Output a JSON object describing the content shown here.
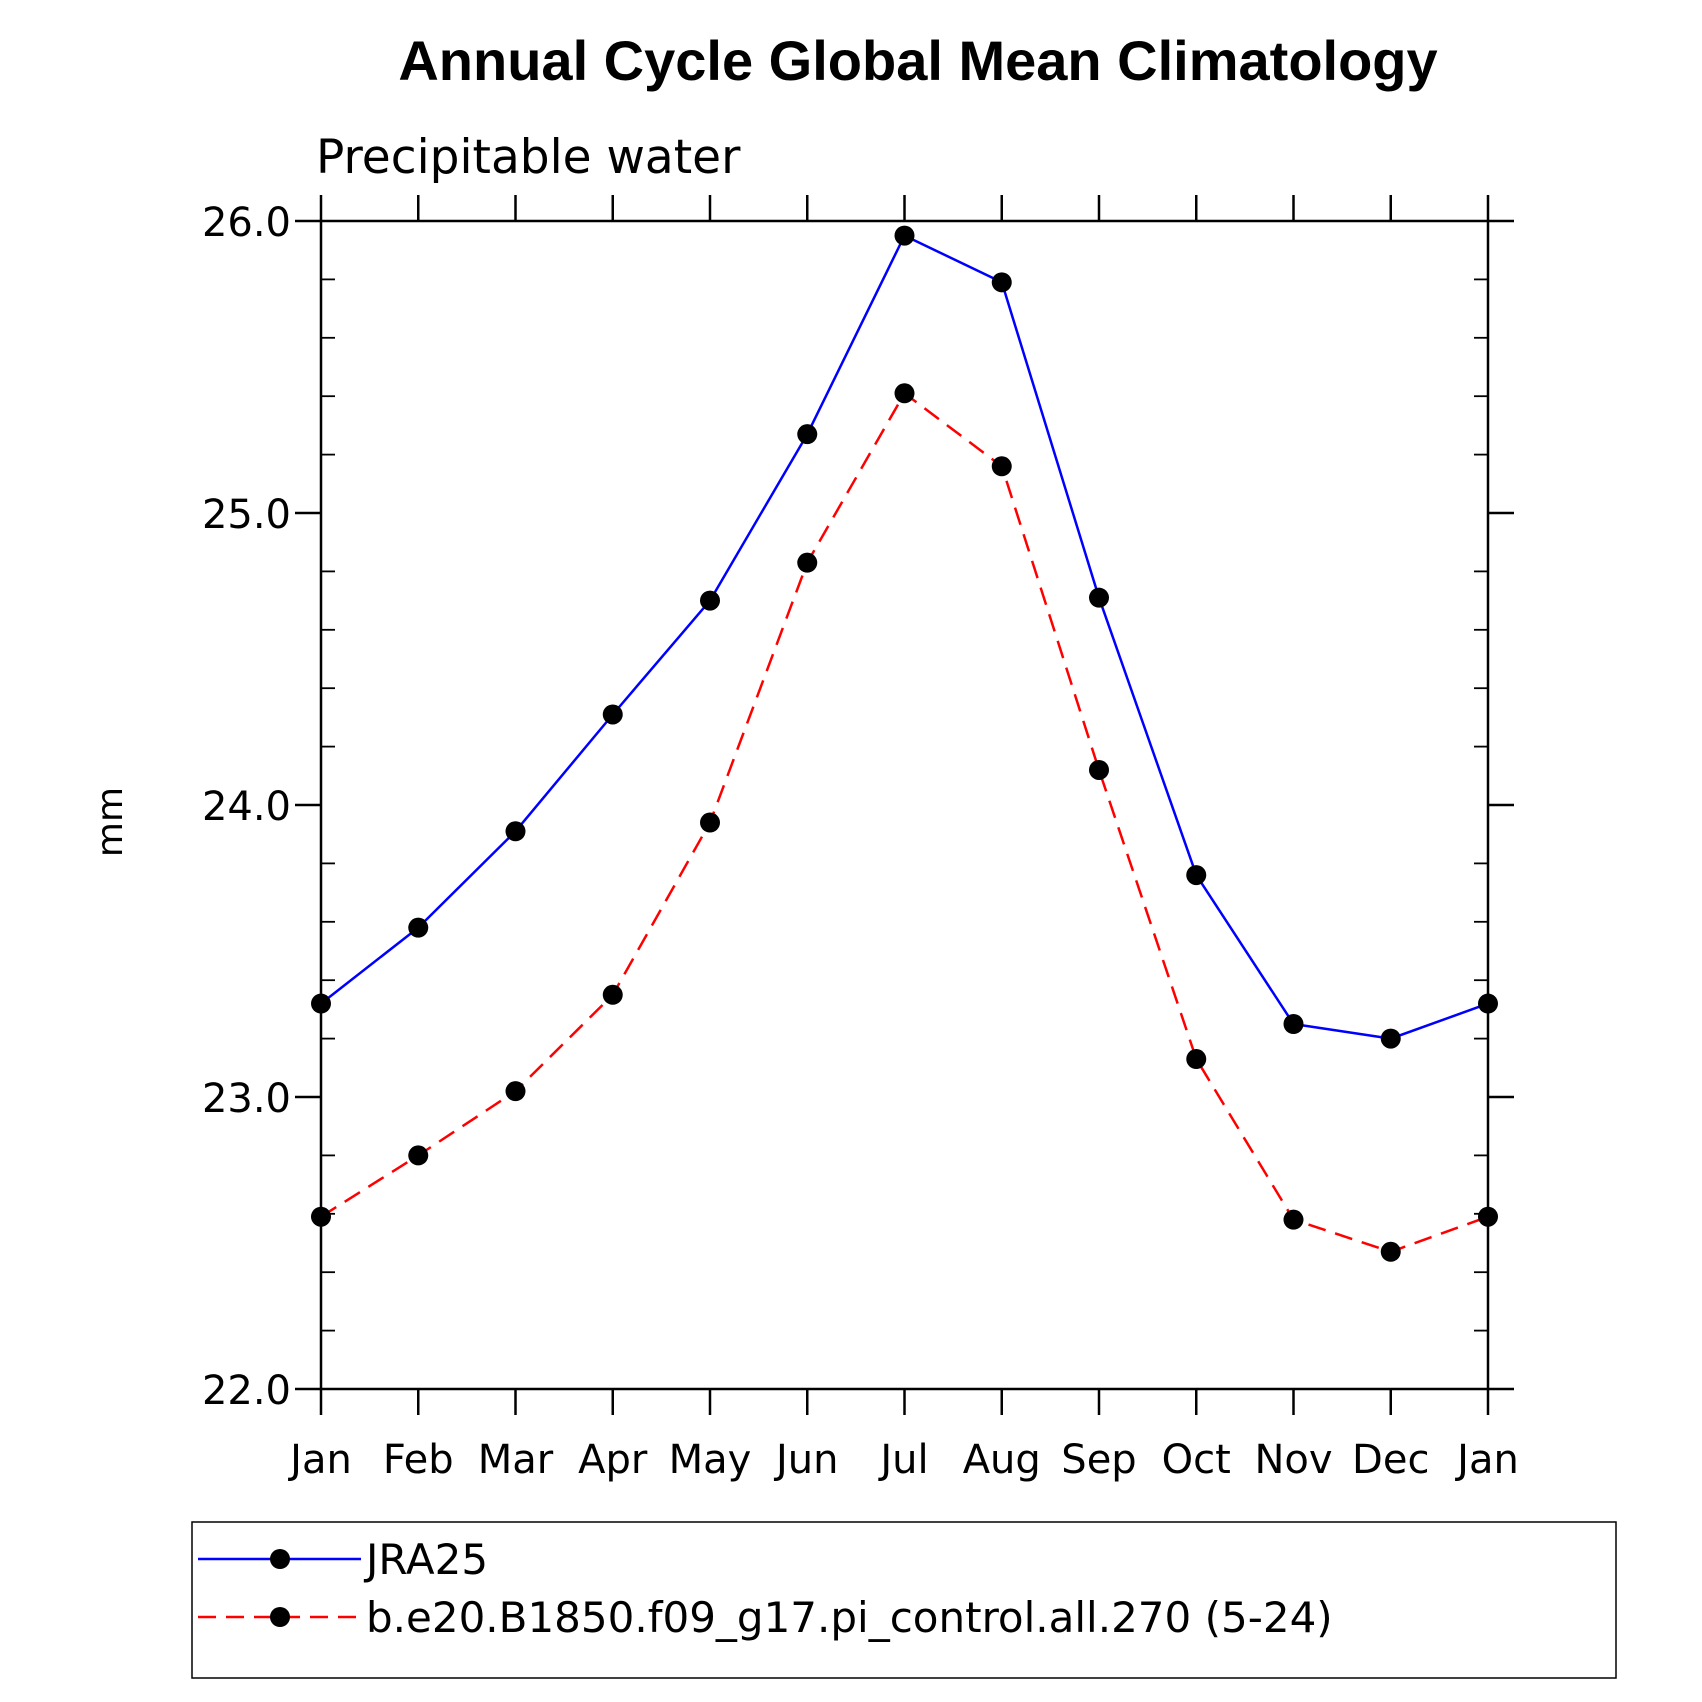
{
  "title": "Annual Cycle Global Mean Climatology",
  "subtitle": "Precipitable water",
  "chart_data": {
    "type": "line",
    "title": "Annual Cycle Global Mean Climatology",
    "subtitle": "Precipitable water",
    "xlabel": "",
    "ylabel": "mm",
    "categories": [
      "Jan",
      "Feb",
      "Mar",
      "Apr",
      "May",
      "Jun",
      "Jul",
      "Aug",
      "Sep",
      "Oct",
      "Nov",
      "Dec",
      "Jan"
    ],
    "ylim": [
      22.0,
      26.0
    ],
    "yticks": [
      "22.0",
      "23.0",
      "24.0",
      "25.0",
      "26.0"
    ],
    "y_minor_step": 0.2,
    "grid": false,
    "legend_position": "bottom",
    "series": [
      {
        "name": "JRA25",
        "color": "#0000ff",
        "dash": "solid",
        "marker": "filled-circle",
        "marker_color": "#000000",
        "values": [
          23.32,
          23.58,
          23.91,
          24.31,
          24.7,
          25.27,
          25.95,
          25.79,
          24.71,
          23.76,
          23.25,
          23.2,
          23.32
        ]
      },
      {
        "name": "b.e20.B1850.f09_g17.pi_control.all.270 (5-24)",
        "color": "#ff0000",
        "dash": "dashed",
        "marker": "filled-circle",
        "marker_color": "#000000",
        "values": [
          22.59,
          22.8,
          23.02,
          23.35,
          23.94,
          24.83,
          25.41,
          25.16,
          24.12,
          23.13,
          22.58,
          22.47,
          22.59
        ]
      }
    ]
  }
}
